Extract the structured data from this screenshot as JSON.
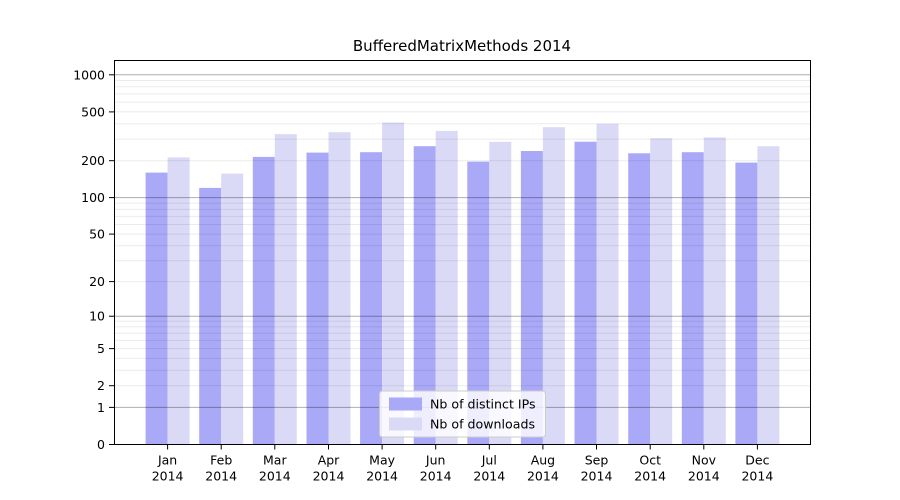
{
  "title": "BufferedMatrixMethods 2014",
  "legend": {
    "items": [
      {
        "label": "Nb of distinct IPs"
      },
      {
        "label": "Nb of downloads"
      }
    ],
    "position": "inside lower center"
  },
  "colors": {
    "series_distinct_ips": "#a9a9f7",
    "series_downloads": "#dadaf7",
    "grid_major": "rgba(0,0,0,0.32)",
    "grid_minor": "rgba(0,0,0,0.08)",
    "axis_frame": "#000000",
    "text": "#000000",
    "legend_bg": "rgba(255,255,255,0.8)",
    "legend_border": "#cccccc",
    "background": "#ffffff"
  },
  "chart_data": {
    "type": "bar",
    "title": "BufferedMatrixMethods 2014",
    "categories": [
      "Jan 2014",
      "Feb 2014",
      "Mar 2014",
      "Apr 2014",
      "May 2014",
      "Jun 2014",
      "Jul 2014",
      "Aug 2014",
      "Sep 2014",
      "Oct 2014",
      "Nov 2014",
      "Dec 2014"
    ],
    "month_labels": [
      "Jan",
      "Feb",
      "Mar",
      "Apr",
      "May",
      "Jun",
      "Jul",
      "Aug",
      "Sep",
      "Oct",
      "Nov",
      "Dec"
    ],
    "year_label": "2014",
    "series": [
      {
        "name": "Nb of distinct IPs",
        "color": "#a9a9f7",
        "values": [
          160,
          120,
          215,
          233,
          235,
          263,
          197,
          240,
          286,
          230,
          235,
          193
        ]
      },
      {
        "name": "Nb of downloads",
        "color": "#dadaf7",
        "values": [
          213,
          157,
          330,
          342,
          410,
          350,
          285,
          375,
          400,
          305,
          310,
          263
        ]
      }
    ],
    "y_scale": "log10(1+value)",
    "y_ticks": [
      1000,
      500,
      200,
      100,
      50,
      20,
      10,
      5,
      2,
      1,
      0
    ],
    "y_gridlines_major": [
      1,
      10,
      100,
      1000
    ],
    "y_gridlines_minor": [
      2,
      3,
      4,
      5,
      6,
      7,
      8,
      9,
      20,
      30,
      40,
      50,
      60,
      70,
      80,
      90,
      200,
      300,
      400,
      500,
      600,
      700,
      800,
      900
    ],
    "ylim": [
      0,
      1320
    ],
    "grid": "horizontal major+minor, drawn above bars",
    "legend_position": "inside lower center"
  }
}
